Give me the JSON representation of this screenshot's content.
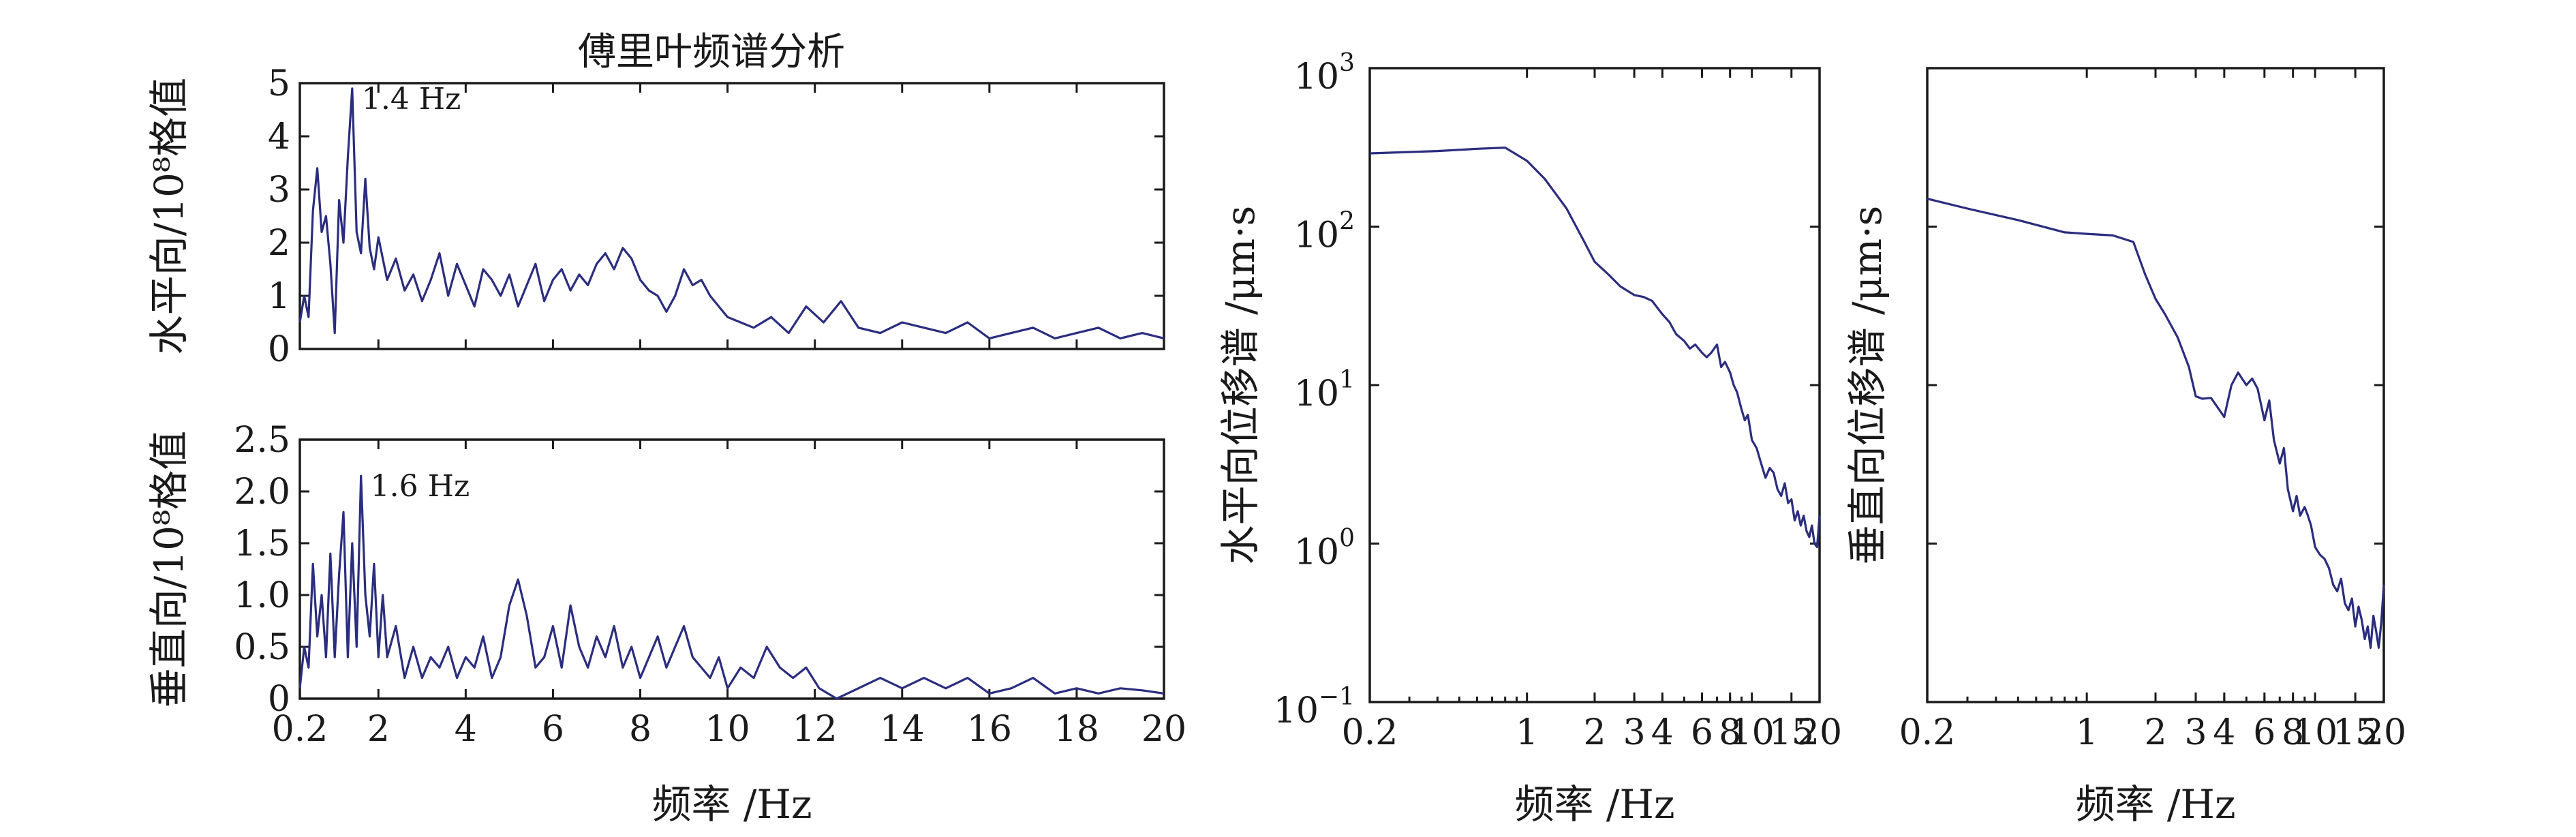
{
  "chart_data": [
    {
      "id": "horizontal_fourier",
      "type": "line",
      "title": "傅里叶频谱分析",
      "ylabel": "水平向/10⁸格值",
      "xlim": [
        0.2,
        20
      ],
      "ylim": [
        0,
        5
      ],
      "xscale": "linear",
      "yscale": "linear",
      "grid": false,
      "x_ticks": [
        {
          "v": 0.2,
          "label": ""
        },
        {
          "v": 2,
          "label": ""
        },
        {
          "v": 4,
          "label": ""
        },
        {
          "v": 6,
          "label": ""
        },
        {
          "v": 8,
          "label": ""
        },
        {
          "v": 10,
          "label": ""
        },
        {
          "v": 12,
          "label": ""
        },
        {
          "v": 14,
          "label": ""
        },
        {
          "v": 16,
          "label": ""
        },
        {
          "v": 18,
          "label": ""
        },
        {
          "v": 20,
          "label": ""
        }
      ],
      "y_ticks": [
        {
          "v": 0,
          "label": "0"
        },
        {
          "v": 1,
          "label": "1"
        },
        {
          "v": 2,
          "label": "2"
        },
        {
          "v": 3,
          "label": "3"
        },
        {
          "v": 4,
          "label": "4"
        },
        {
          "v": 5,
          "label": "5"
        }
      ],
      "annotations": [
        {
          "x": 1.4,
          "y": 4.9,
          "text": "1.4 Hz"
        }
      ],
      "series": [
        {
          "color": "#2b2d7e",
          "x": [
            0.2,
            0.3,
            0.4,
            0.5,
            0.6,
            0.7,
            0.8,
            0.9,
            1.0,
            1.1,
            1.2,
            1.3,
            1.4,
            1.5,
            1.6,
            1.7,
            1.8,
            1.9,
            2.0,
            2.2,
            2.4,
            2.6,
            2.8,
            3.0,
            3.2,
            3.4,
            3.6,
            3.8,
            4.0,
            4.2,
            4.4,
            4.6,
            4.8,
            5.0,
            5.2,
            5.4,
            5.6,
            5.8,
            6.0,
            6.2,
            6.4,
            6.6,
            6.8,
            7.0,
            7.2,
            7.4,
            7.6,
            7.8,
            8.0,
            8.2,
            8.4,
            8.6,
            8.8,
            9.0,
            9.2,
            9.4,
            9.6,
            9.8,
            10.0,
            10.3,
            10.6,
            11.0,
            11.4,
            11.8,
            12.2,
            12.6,
            13.0,
            13.5,
            14.0,
            14.5,
            15.0,
            15.5,
            16.0,
            16.5,
            17.0,
            17.5,
            18.0,
            18.5,
            19.0,
            19.5,
            20.0
          ],
          "y": [
            0.5,
            1.0,
            0.6,
            2.6,
            3.4,
            2.2,
            2.5,
            1.6,
            0.3,
            2.8,
            2.0,
            3.6,
            4.9,
            2.2,
            1.8,
            3.2,
            1.9,
            1.5,
            2.1,
            1.3,
            1.7,
            1.1,
            1.4,
            0.9,
            1.3,
            1.8,
            1.0,
            1.6,
            1.2,
            0.8,
            1.5,
            1.3,
            1.0,
            1.4,
            0.8,
            1.2,
            1.6,
            0.9,
            1.3,
            1.5,
            1.1,
            1.4,
            1.2,
            1.6,
            1.8,
            1.5,
            1.9,
            1.7,
            1.3,
            1.1,
            1.0,
            0.7,
            1.0,
            1.5,
            1.2,
            1.3,
            1.0,
            0.8,
            0.6,
            0.5,
            0.4,
            0.6,
            0.3,
            0.8,
            0.5,
            0.9,
            0.4,
            0.3,
            0.5,
            0.4,
            0.3,
            0.5,
            0.2,
            0.3,
            0.4,
            0.2,
            0.3,
            0.4,
            0.2,
            0.3,
            0.2
          ]
        }
      ]
    },
    {
      "id": "vertical_fourier",
      "type": "line",
      "xlabel": "频率 /Hz",
      "ylabel": "垂直向/10⁸格值",
      "xlim": [
        0.2,
        20
      ],
      "ylim": [
        0,
        2.5
      ],
      "xscale": "linear",
      "yscale": "linear",
      "grid": false,
      "x_ticks": [
        {
          "v": 0.2,
          "label": "0.2"
        },
        {
          "v": 2,
          "label": "2"
        },
        {
          "v": 4,
          "label": "4"
        },
        {
          "v": 6,
          "label": "6"
        },
        {
          "v": 8,
          "label": "8"
        },
        {
          "v": 10,
          "label": "10"
        },
        {
          "v": 12,
          "label": "12"
        },
        {
          "v": 14,
          "label": "14"
        },
        {
          "v": 16,
          "label": "16"
        },
        {
          "v": 18,
          "label": "18"
        },
        {
          "v": 20,
          "label": "20"
        }
      ],
      "y_ticks": [
        {
          "v": 0,
          "label": "0"
        },
        {
          "v": 0.5,
          "label": "0.5"
        },
        {
          "v": 1.0,
          "label": "1.0"
        },
        {
          "v": 1.5,
          "label": "1.5"
        },
        {
          "v": 2.0,
          "label": "2.0"
        },
        {
          "v": 2.5,
          "label": "2.5"
        }
      ],
      "annotations": [
        {
          "x": 1.6,
          "y": 2.15,
          "text": "1.6 Hz"
        }
      ],
      "series": [
        {
          "color": "#2b2d7e",
          "x": [
            0.2,
            0.3,
            0.4,
            0.5,
            0.6,
            0.7,
            0.8,
            0.9,
            1.0,
            1.1,
            1.2,
            1.3,
            1.4,
            1.5,
            1.6,
            1.7,
            1.8,
            1.9,
            2.0,
            2.1,
            2.2,
            2.4,
            2.6,
            2.8,
            3.0,
            3.2,
            3.4,
            3.6,
            3.8,
            4.0,
            4.2,
            4.4,
            4.6,
            4.8,
            5.0,
            5.2,
            5.4,
            5.6,
            5.8,
            6.0,
            6.2,
            6.4,
            6.6,
            6.8,
            7.0,
            7.2,
            7.4,
            7.6,
            7.8,
            8.0,
            8.2,
            8.4,
            8.6,
            8.8,
            9.0,
            9.2,
            9.4,
            9.6,
            9.8,
            10.0,
            10.3,
            10.6,
            10.9,
            11.2,
            11.5,
            11.8,
            12.1,
            12.5,
            13.0,
            13.5,
            14.0,
            14.5,
            15.0,
            15.5,
            16.0,
            16.5,
            17.0,
            17.5,
            18.0,
            18.5,
            19.0,
            19.5,
            20.0
          ],
          "y": [
            0.1,
            0.5,
            0.3,
            1.3,
            0.6,
            1.0,
            0.4,
            1.4,
            0.4,
            1.2,
            1.8,
            0.4,
            1.5,
            0.5,
            2.15,
            1.0,
            0.6,
            1.3,
            0.4,
            1.0,
            0.4,
            0.7,
            0.2,
            0.5,
            0.2,
            0.4,
            0.3,
            0.5,
            0.2,
            0.4,
            0.3,
            0.6,
            0.2,
            0.4,
            0.9,
            1.15,
            0.8,
            0.3,
            0.4,
            0.7,
            0.3,
            0.9,
            0.5,
            0.3,
            0.6,
            0.4,
            0.7,
            0.3,
            0.5,
            0.2,
            0.4,
            0.6,
            0.3,
            0.5,
            0.7,
            0.4,
            0.3,
            0.2,
            0.4,
            0.1,
            0.3,
            0.2,
            0.5,
            0.3,
            0.2,
            0.3,
            0.1,
            0.0,
            0.1,
            0.2,
            0.1,
            0.2,
            0.1,
            0.2,
            0.05,
            0.1,
            0.2,
            0.05,
            0.1,
            0.05,
            0.1,
            0.08,
            0.05
          ]
        }
      ]
    },
    {
      "id": "horizontal_displacement",
      "type": "line",
      "xlabel": "频率 /Hz",
      "ylabel": "水平向位移谱 /μm·s",
      "xlim": [
        0.2,
        20
      ],
      "ylim": [
        0.1,
        1000
      ],
      "xscale": "log",
      "yscale": "log",
      "grid": false,
      "x_ticks": [
        {
          "v": 0.2,
          "label": "0.2"
        },
        {
          "v": 1,
          "label": "1"
        },
        {
          "v": 2,
          "label": "2"
        },
        {
          "v": 3,
          "label": "3"
        },
        {
          "v": 4,
          "label": "4"
        },
        {
          "v": 6,
          "label": "6"
        },
        {
          "v": 8,
          "label": "8"
        },
        {
          "v": 10,
          "label": "10"
        },
        {
          "v": 15,
          "label": "15"
        },
        {
          "v": 20,
          "label": "20"
        }
      ],
      "y_ticks": [
        {
          "v": 0.1,
          "base": "10",
          "exp": "−1"
        },
        {
          "v": 1,
          "base": "10",
          "exp": "0"
        },
        {
          "v": 10,
          "base": "10",
          "exp": "1"
        },
        {
          "v": 100,
          "base": "10",
          "exp": "2"
        },
        {
          "v": 1000,
          "base": "10",
          "exp": "3"
        }
      ],
      "series": [
        {
          "color": "#2b2d7e",
          "x": [
            0.2,
            0.4,
            0.6,
            0.8,
            1.0,
            1.2,
            1.5,
            1.8,
            2.0,
            2.3,
            2.6,
            3.0,
            3.3,
            3.6,
            4.0,
            4.3,
            4.6,
            5.0,
            5.3,
            5.6,
            6.0,
            6.3,
            6.6,
            7.0,
            7.3,
            7.6,
            8.0,
            8.3,
            8.6,
            9.0,
            9.3,
            9.6,
            10.0,
            10.5,
            11.0,
            11.5,
            12.0,
            12.5,
            13.0,
            13.5,
            14.0,
            14.5,
            15.0,
            15.5,
            16.0,
            16.5,
            17.0,
            17.5,
            18.0,
            18.5,
            19.0,
            19.5,
            20.0
          ],
          "y": [
            290,
            300,
            310,
            315,
            260,
            200,
            130,
            80,
            60,
            50,
            42,
            37,
            36,
            34,
            28,
            25,
            21,
            19,
            17,
            18,
            16,
            15,
            16,
            18,
            13,
            14,
            12,
            10,
            9,
            7,
            6,
            6.5,
            4.5,
            4.0,
            3.2,
            2.6,
            3.0,
            2.8,
            2.2,
            2.0,
            2.4,
            1.8,
            1.9,
            1.4,
            1.6,
            1.3,
            1.5,
            1.2,
            1.1,
            1.3,
            1.0,
            0.95,
            1.5
          ]
        }
      ]
    },
    {
      "id": "vertical_displacement",
      "type": "line",
      "xlabel": "频率 /Hz",
      "ylabel": "垂直向位移谱 /μm·s",
      "xlim": [
        0.2,
        20
      ],
      "ylim": [
        0.1,
        1000
      ],
      "xscale": "log",
      "yscale": "log",
      "grid": false,
      "x_ticks": [
        {
          "v": 0.2,
          "label": "0.2"
        },
        {
          "v": 1,
          "label": "1"
        },
        {
          "v": 2,
          "label": "2"
        },
        {
          "v": 3,
          "label": "3"
        },
        {
          "v": 4,
          "label": "4"
        },
        {
          "v": 6,
          "label": "6"
        },
        {
          "v": 8,
          "label": "8"
        },
        {
          "v": 10,
          "label": "10"
        },
        {
          "v": 15,
          "label": "15"
        },
        {
          "v": 20,
          "label": "20"
        }
      ],
      "y_ticks": [
        {
          "v": 0.1,
          "label": ""
        },
        {
          "v": 1,
          "label": ""
        },
        {
          "v": 10,
          "label": ""
        },
        {
          "v": 100,
          "label": ""
        },
        {
          "v": 1000,
          "label": ""
        }
      ],
      "series": [
        {
          "color": "#2b2d7e",
          "x": [
            0.2,
            0.3,
            0.5,
            0.8,
            1.0,
            1.3,
            1.6,
            1.8,
            2.0,
            2.2,
            2.5,
            2.8,
            3.0,
            3.2,
            3.5,
            3.8,
            4.0,
            4.3,
            4.6,
            5.0,
            5.3,
            5.6,
            6.0,
            6.3,
            6.6,
            7.0,
            7.3,
            7.6,
            8.0,
            8.3,
            8.6,
            9.0,
            9.3,
            9.6,
            10.0,
            10.5,
            11.0,
            11.5,
            12.0,
            12.5,
            13.0,
            13.5,
            14.0,
            14.5,
            15.0,
            15.5,
            16.0,
            16.5,
            17.0,
            17.5,
            18.0,
            18.5,
            19.0,
            19.5,
            20.0
          ],
          "y": [
            150,
            130,
            110,
            92,
            90,
            88,
            80,
            50,
            35,
            28,
            20,
            13,
            8.5,
            8.2,
            8.3,
            7.0,
            6.3,
            10,
            12,
            10,
            11,
            9.5,
            6.0,
            8.0,
            4.5,
            3.2,
            4.0,
            2.2,
            1.6,
            2.0,
            1.5,
            1.7,
            1.5,
            1.3,
            0.95,
            0.85,
            0.8,
            0.7,
            0.55,
            0.5,
            0.6,
            0.42,
            0.38,
            0.45,
            0.3,
            0.4,
            0.33,
            0.25,
            0.3,
            0.22,
            0.35,
            0.28,
            0.22,
            0.32,
            0.55
          ]
        }
      ]
    }
  ]
}
